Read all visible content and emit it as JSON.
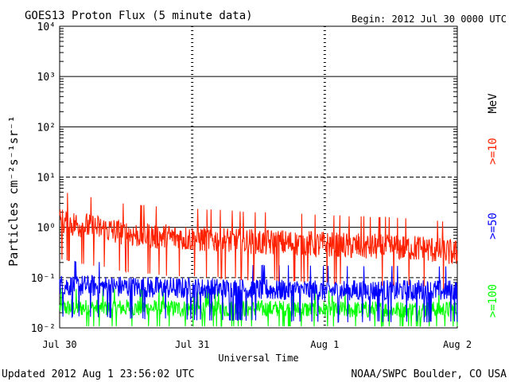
{
  "header": {
    "title": "GOES13 Proton Flux (5 minute data)",
    "begin": "Begin: 2012 Jul 30 0000 UTC"
  },
  "footer": {
    "updated": "Updated 2012 Aug  1 23:56:02 UTC",
    "credit": "NOAA/SWPC Boulder, CO USA"
  },
  "right_axis": {
    "unit": "MeV",
    "labels": [
      ">=10",
      ">=50",
      ">=100"
    ]
  },
  "chart_data": {
    "type": "line",
    "title": "GOES13 Proton Flux (5 minute data)",
    "xlabel": "Universal Time",
    "ylabel": "Particles cm⁻²s⁻¹sr⁻¹",
    "x_ticks": [
      "Jul 30",
      "Jul 31",
      "Aug 1",
      "Aug 2"
    ],
    "xlim": [
      "2012-07-30 00:00",
      "2012-08-02 00:00"
    ],
    "y_scale": "log",
    "ylim": [
      0.01,
      10000
    ],
    "y_ticks": [
      "10⁻²",
      "10⁻¹",
      "10⁰",
      "10¹",
      "10²",
      "10³",
      "10⁴"
    ],
    "reference_lines": [
      {
        "y": 10000,
        "style": "solid"
      },
      {
        "y": 1000,
        "style": "solid"
      },
      {
        "y": 100,
        "style": "solid"
      },
      {
        "y": 10,
        "style": "dashed"
      },
      {
        "y": 1,
        "style": "solid"
      },
      {
        "y": 0.1,
        "style": "dashed"
      }
    ],
    "series": [
      {
        "name": ">=10 MeV",
        "color": "#ff2200",
        "x": [
          "2012-07-30 00:00",
          "2012-07-30 06:00",
          "2012-07-30 12:00",
          "2012-07-30 18:00",
          "2012-07-31 00:00",
          "2012-07-31 06:00",
          "2012-07-31 12:00",
          "2012-07-31 18:00",
          "2012-08-01 00:00",
          "2012-08-01 06:00",
          "2012-08-01 12:00",
          "2012-08-01 18:00",
          "2012-08-02 00:00"
        ],
        "values": [
          1.3,
          1.0,
          0.75,
          0.65,
          0.6,
          0.55,
          0.5,
          0.48,
          0.45,
          0.42,
          0.4,
          0.38,
          0.3
        ]
      },
      {
        "name": ">=50 MeV",
        "color": "#0000ff",
        "x": [
          "2012-07-30 00:00",
          "2012-07-30 12:00",
          "2012-07-31 00:00",
          "2012-07-31 12:00",
          "2012-08-01 00:00",
          "2012-08-01 12:00",
          "2012-08-02 00:00"
        ],
        "values": [
          0.07,
          0.065,
          0.06,
          0.058,
          0.055,
          0.055,
          0.055
        ]
      },
      {
        "name": ">=100 MeV",
        "color": "#00ff00",
        "x": [
          "2012-07-30 00:00",
          "2012-07-30 12:00",
          "2012-07-31 00:00",
          "2012-07-31 12:00",
          "2012-08-01 00:00",
          "2012-08-01 12:00",
          "2012-08-02 00:00"
        ],
        "values": [
          0.025,
          0.025,
          0.024,
          0.024,
          0.023,
          0.023,
          0.023
        ]
      }
    ]
  }
}
